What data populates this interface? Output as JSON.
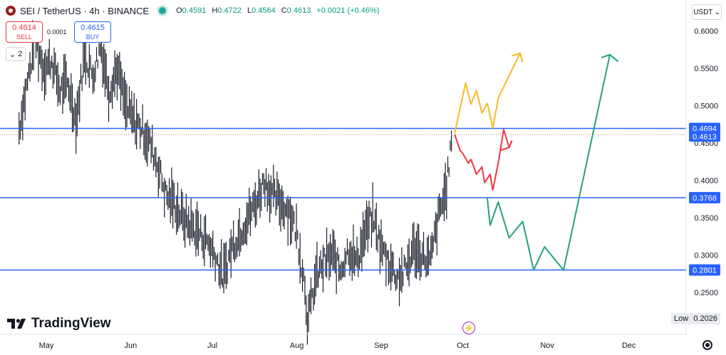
{
  "header": {
    "symbol": "SEI / TetherUS · 4h · BINANCE",
    "open_label": "O",
    "open": "0.4591",
    "high_label": "H",
    "high": "0.4722",
    "low_label": "L",
    "low": "0.4564",
    "close_label": "C",
    "close": "0.4613",
    "change": "+0.0021 (+0.46%)"
  },
  "trade": {
    "sell_price": "0.4614",
    "sell_label": "SELL",
    "buy_price": "0.4615",
    "buy_label": "BUY",
    "spread": "0.0001"
  },
  "layers_count": "2",
  "currency": "USDT",
  "logo_text": "TradingView",
  "low_badge": {
    "label": "Low",
    "value": "0.2026"
  },
  "colors": {
    "level_line": "#2962ff",
    "candle": "#1b1f2a",
    "yellow_path": "#f7b924",
    "red_path": "#f23645",
    "green_path": "#26a17b",
    "event_icon": "#9c27b0"
  },
  "chart_data": {
    "type": "line",
    "ylim": [
      0.18,
      0.64
    ],
    "y_ticks": [
      "0.6000",
      "0.5500",
      "0.5000",
      "0.4500",
      "0.4000",
      "0.3500",
      "0.3000",
      "0.2500"
    ],
    "y_tick_values": [
      0.6,
      0.55,
      0.5,
      0.45,
      0.4,
      0.35,
      0.3,
      0.25
    ],
    "x_ticks": [
      "May",
      "Jun",
      "Jul",
      "Aug",
      "Sep",
      "Oct",
      "Nov",
      "Dec"
    ],
    "x_tick_dates": [
      "2024-05-01",
      "2024-06-01",
      "2024-07-01",
      "2024-08-01",
      "2024-09-01",
      "2024-10-01",
      "2024-11-01",
      "2024-12-01"
    ],
    "levels": [
      {
        "value": 0.4694,
        "label": "0.4694"
      },
      {
        "value": 0.3768,
        "label": "0.3768"
      },
      {
        "value": 0.2801,
        "label": "0.2801"
      }
    ],
    "last_price": {
      "value": 0.4613,
      "label": "0.4613"
    },
    "series": [
      {
        "color": "#1b1f2a",
        "x": [
          "2024-04-21",
          "2024-04-24",
          "2024-04-27",
          "2024-04-30",
          "2024-05-03",
          "2024-05-06",
          "2024-05-09",
          "2024-05-12",
          "2024-05-15",
          "2024-05-18",
          "2024-05-21",
          "2024-05-24",
          "2024-05-27",
          "2024-05-30",
          "2024-06-02",
          "2024-06-05",
          "2024-06-08",
          "2024-06-11",
          "2024-06-14",
          "2024-06-17",
          "2024-06-20",
          "2024-06-23",
          "2024-06-26",
          "2024-06-29",
          "2024-07-02",
          "2024-07-05",
          "2024-07-08",
          "2024-07-11",
          "2024-07-14",
          "2024-07-17",
          "2024-07-20",
          "2024-07-23",
          "2024-07-26",
          "2024-07-29",
          "2024-08-01",
          "2024-08-04",
          "2024-08-05",
          "2024-08-08",
          "2024-08-11",
          "2024-08-14",
          "2024-08-17",
          "2024-08-20",
          "2024-08-23",
          "2024-08-26",
          "2024-08-29",
          "2024-09-01",
          "2024-09-04",
          "2024-09-07",
          "2024-09-10",
          "2024-09-13",
          "2024-09-16",
          "2024-09-19",
          "2024-09-22",
          "2024-09-25",
          "2024-09-27"
        ],
        "values": [
          0.47,
          0.53,
          0.59,
          0.55,
          0.56,
          0.52,
          0.53,
          0.48,
          0.57,
          0.54,
          0.58,
          0.52,
          0.55,
          0.5,
          0.48,
          0.47,
          0.45,
          0.42,
          0.38,
          0.37,
          0.35,
          0.34,
          0.33,
          0.32,
          0.3,
          0.27,
          0.31,
          0.33,
          0.35,
          0.37,
          0.4,
          0.38,
          0.37,
          0.36,
          0.33,
          0.26,
          0.21,
          0.27,
          0.29,
          0.3,
          0.28,
          0.31,
          0.29,
          0.33,
          0.35,
          0.31,
          0.29,
          0.27,
          0.28,
          0.31,
          0.3,
          0.29,
          0.35,
          0.39,
          0.46
        ]
      },
      {
        "color": "#f7b924",
        "x": [
          "2024-09-28",
          "2024-10-02",
          "2024-10-04",
          "2024-10-06",
          "2024-10-08",
          "2024-10-10",
          "2024-10-12",
          "2024-10-14",
          "2024-10-22",
          "2024-10-23"
        ],
        "values": [
          0.463,
          0.53,
          0.502,
          0.52,
          0.49,
          0.503,
          0.47,
          0.51,
          0.57,
          0.558
        ]
      },
      {
        "color": "#f23645",
        "x": [
          "2024-09-28",
          "2024-09-30",
          "2024-10-01",
          "2024-10-03",
          "2024-10-04",
          "2024-10-06",
          "2024-10-08",
          "2024-10-09",
          "2024-10-11",
          "2024-10-12",
          "2024-10-14",
          "2024-10-16",
          "2024-10-18",
          "2024-10-19"
        ],
        "values": [
          0.4613,
          0.44,
          0.436,
          0.423,
          0.428,
          0.408,
          0.418,
          0.397,
          0.408,
          0.387,
          0.423,
          0.468,
          0.444,
          0.453
        ]
      },
      {
        "color": "#26a17b",
        "x": [
          "2024-10-10",
          "2024-10-11",
          "2024-10-14",
          "2024-10-18",
          "2024-10-23",
          "2024-10-27",
          "2024-10-31",
          "2024-11-07",
          "2024-11-24",
          "2024-11-27"
        ],
        "values": [
          0.376,
          0.34,
          0.371,
          0.323,
          0.345,
          0.28,
          0.311,
          0.28,
          0.568,
          0.559
        ]
      }
    ]
  }
}
